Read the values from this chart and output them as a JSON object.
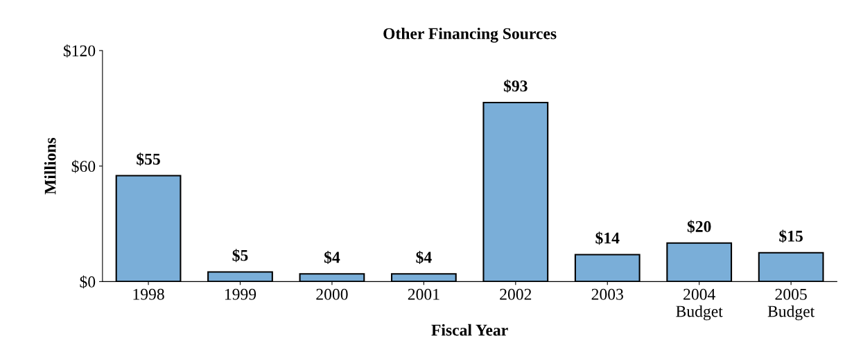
{
  "chart_data": {
    "type": "bar",
    "title": "Other Financing Sources",
    "xlabel": "Fiscal Year",
    "ylabel": "Millions",
    "categories": [
      "1998",
      "1999",
      "2000",
      "2001",
      "2002",
      "2003",
      "2004\nBudget",
      "2005\nBudget"
    ],
    "values": [
      55,
      5,
      4,
      4,
      93,
      14,
      20,
      15
    ],
    "value_labels": [
      "$55",
      "$5",
      "$4",
      "$4",
      "$93",
      "$14",
      "$20",
      "$15"
    ],
    "color": "#7aaed8",
    "ylim": [
      0,
      120
    ],
    "yticks": [
      {
        "value": 0,
        "label": "$0"
      },
      {
        "value": 60,
        "label": "$60"
      },
      {
        "value": 120,
        "label": "$120"
      }
    ],
    "grid": false,
    "legend": false
  }
}
